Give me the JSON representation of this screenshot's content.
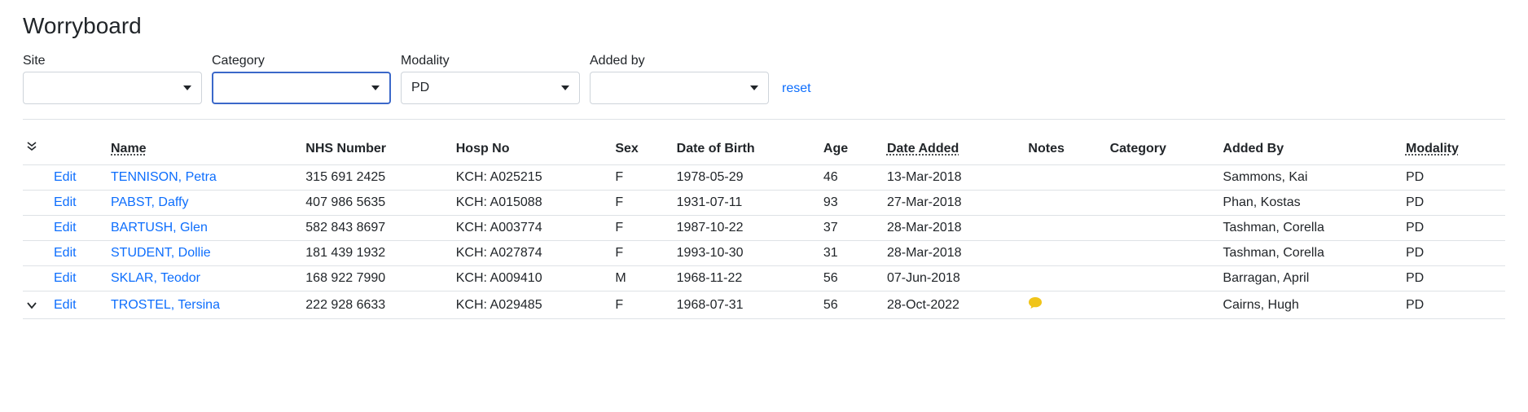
{
  "page": {
    "title": "Worryboard"
  },
  "filters": {
    "site": {
      "label": "Site",
      "value": ""
    },
    "category": {
      "label": "Category",
      "value": ""
    },
    "modality": {
      "label": "Modality",
      "value": "PD"
    },
    "added_by": {
      "label": "Added by",
      "value": ""
    },
    "reset_label": "reset"
  },
  "table": {
    "columns": {
      "edit": "",
      "name": "Name",
      "nhs_number": "NHS Number",
      "hosp_no": "Hosp No",
      "sex": "Sex",
      "dob": "Date of Birth",
      "age": "Age",
      "date_added": "Date Added",
      "notes": "Notes",
      "category": "Category",
      "added_by": "Added By",
      "modality": "Modality"
    },
    "rows": [
      {
        "expandable": false,
        "edit": "Edit",
        "name": "TENNISON, Petra",
        "nhs_number": "315 691 2425",
        "hosp_no": "KCH: A025215",
        "sex": "F",
        "dob": "1978-05-29",
        "age": "46",
        "date_added": "13-Mar-2018",
        "has_notes": false,
        "category": "",
        "added_by": "Sammons, Kai",
        "modality": "PD"
      },
      {
        "expandable": false,
        "edit": "Edit",
        "name": "PABST, Daffy",
        "nhs_number": "407 986 5635",
        "hosp_no": "KCH: A015088",
        "sex": "F",
        "dob": "1931-07-11",
        "age": "93",
        "date_added": "27-Mar-2018",
        "has_notes": false,
        "category": "",
        "added_by": "Phan, Kostas",
        "modality": "PD"
      },
      {
        "expandable": false,
        "edit": "Edit",
        "name": "BARTUSH, Glen",
        "nhs_number": "582 843 8697",
        "hosp_no": "KCH: A003774",
        "sex": "F",
        "dob": "1987-10-22",
        "age": "37",
        "date_added": "28-Mar-2018",
        "has_notes": false,
        "category": "",
        "added_by": "Tashman, Corella",
        "modality": "PD"
      },
      {
        "expandable": false,
        "edit": "Edit",
        "name": "STUDENT, Dollie",
        "nhs_number": "181 439 1932",
        "hosp_no": "KCH: A027874",
        "sex": "F",
        "dob": "1993-10-30",
        "age": "31",
        "date_added": "28-Mar-2018",
        "has_notes": false,
        "category": "",
        "added_by": "Tashman, Corella",
        "modality": "PD"
      },
      {
        "expandable": false,
        "edit": "Edit",
        "name": "SKLAR, Teodor",
        "nhs_number": "168 922 7990",
        "hosp_no": "KCH: A009410",
        "sex": "M",
        "dob": "1968-11-22",
        "age": "56",
        "date_added": "07-Jun-2018",
        "has_notes": false,
        "category": "",
        "added_by": "Barragan, April",
        "modality": "PD"
      },
      {
        "expandable": true,
        "edit": "Edit",
        "name": "TROSTEL, Tersina",
        "nhs_number": "222 928 6633",
        "hosp_no": "KCH: A029485",
        "sex": "F",
        "dob": "1968-07-31",
        "age": "56",
        "date_added": "28-Oct-2022",
        "has_notes": true,
        "category": "",
        "added_by": "Cairns, Hugh",
        "modality": "PD"
      }
    ]
  },
  "colors": {
    "link": "#0d6efd",
    "border": "#dee2e6",
    "focus_border": "#3b68c9",
    "notes_icon": "#f0c419",
    "text": "#212529"
  }
}
